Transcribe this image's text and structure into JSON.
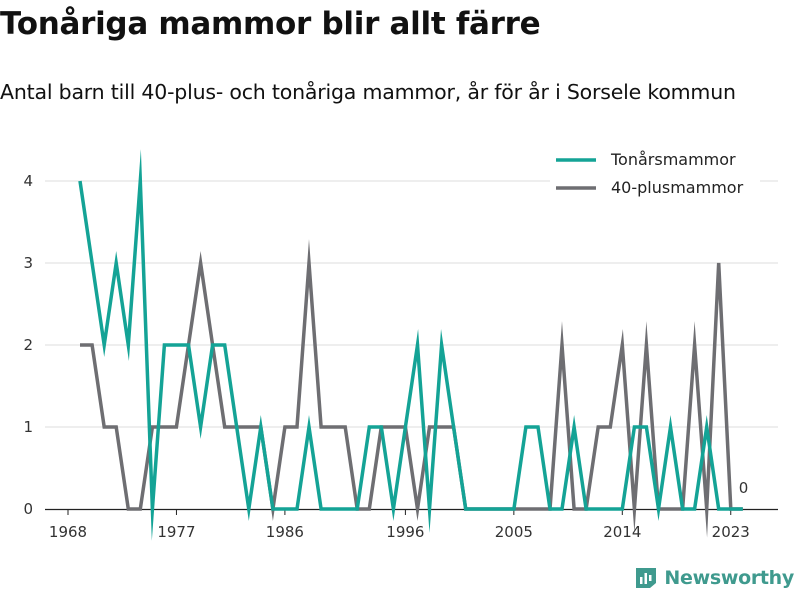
{
  "chart_data": {
    "type": "line",
    "title": "Tonåriga mammor blir allt färre",
    "subtitle": "Antal barn till 40-plus- och tonåriga mammor, år för år i Sorsele kommun",
    "x": [
      1969,
      1970,
      1971,
      1972,
      1973,
      1974,
      1975,
      1976,
      1977,
      1978,
      1979,
      1980,
      1981,
      1982,
      1983,
      1984,
      1985,
      1986,
      1987,
      1988,
      1989,
      1990,
      1991,
      1992,
      1993,
      1994,
      1995,
      1996,
      1997,
      1998,
      1999,
      2000,
      2001,
      2002,
      2003,
      2004,
      2005,
      2006,
      2007,
      2008,
      2009,
      2010,
      2011,
      2012,
      2013,
      2014,
      2015,
      2016,
      2017,
      2018,
      2019,
      2020,
      2021,
      2022,
      2023,
      2024
    ],
    "series": [
      {
        "name": "Tonårsmammor",
        "color": "#14a396",
        "values": [
          4,
          3,
          2,
          3,
          2,
          4,
          0,
          2,
          2,
          2,
          1,
          2,
          2,
          1,
          0,
          1,
          0,
          0,
          0,
          1,
          0,
          0,
          0,
          0,
          1,
          1,
          0,
          1,
          2,
          0,
          2,
          1,
          0,
          0,
          0,
          0,
          0,
          1,
          1,
          0,
          0,
          1,
          0,
          0,
          0,
          0,
          1,
          1,
          0,
          1,
          0,
          0,
          1,
          0,
          0,
          0
        ]
      },
      {
        "name": "40-plusmammor",
        "color": "#6e6e72",
        "values": [
          2,
          2,
          1,
          1,
          0,
          0,
          1,
          1,
          1,
          2,
          3,
          2,
          1,
          1,
          1,
          1,
          0,
          1,
          1,
          3,
          1,
          1,
          1,
          0,
          0,
          1,
          1,
          1,
          0,
          1,
          1,
          1,
          0,
          0,
          0,
          0,
          0,
          0,
          0,
          0,
          2,
          0,
          0,
          1,
          1,
          2,
          0,
          2,
          0,
          0,
          0,
          2,
          0,
          3,
          0,
          0
        ]
      }
    ],
    "xticks": [
      1968,
      1977,
      1986,
      1996,
      2005,
      2014,
      2023
    ],
    "xtick_labels": [
      "1968",
      "1977",
      "1986",
      "1996",
      "2005",
      "2014",
      "2023"
    ],
    "yticks": [
      0,
      1,
      2,
      3,
      4
    ],
    "ytick_labels": [
      "0",
      "1",
      "2",
      "3",
      "4"
    ],
    "xlim": [
      1968,
      2026
    ],
    "ylim": [
      0,
      4
    ],
    "end_label": "0",
    "grid": true,
    "legend_position": "top-right"
  },
  "brand": {
    "name": "Newsworthy",
    "icon": "bar-chart-icon",
    "color": "#3f9a8e"
  }
}
